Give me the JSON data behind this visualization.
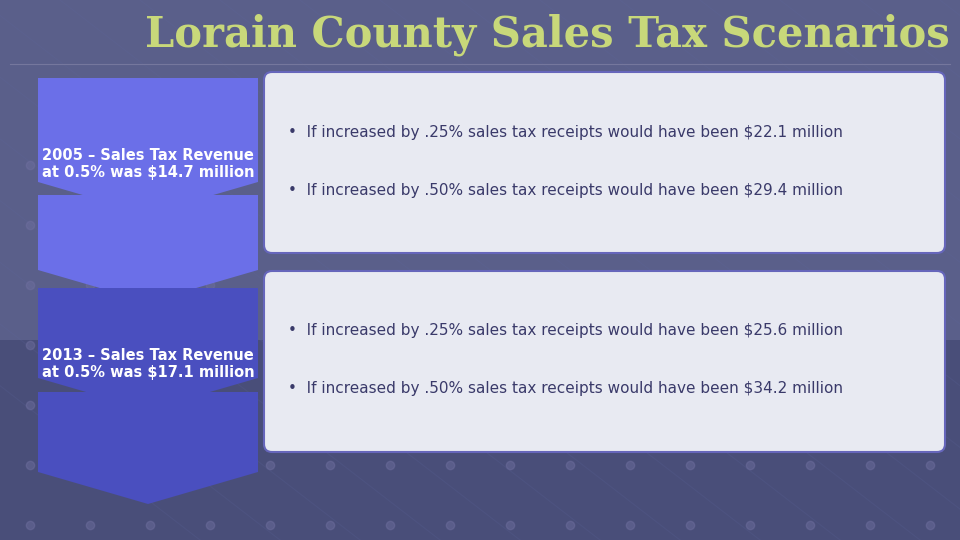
{
  "title": "Lorain County Sales Tax Scenarios",
  "title_color": "#c8d87a",
  "bg_top_color": "#5a5f8a",
  "bg_bottom_color": "#3a3f6a",
  "box1_label_line1": "2005 – Sales Tax Revenue",
  "box1_label_line2": "at 0.5% was $14.7 million",
  "box2_label_line1": "2013 – Sales Tax Revenue",
  "box2_label_line2": "at 0.5% was $17.1 million",
  "box1_bullet1": "•  If increased by .25% sales tax receipts would have been $22.1 million",
  "box1_bullet2": "•  If increased by .50% sales tax receipts would have been $29.4 million",
  "box2_bullet1": "•  If increased by .25% sales tax receipts would have been $25.6 million",
  "box2_bullet2": "•  If increased by .50% sales tax receipts would have been $34.2 million",
  "chevron_color_top": "#6b6fe8",
  "chevron_color_bottom": "#4a4fbf",
  "label_text_color": "#ffffff",
  "box_bg_color": "#e8eaf2",
  "box_border_color": "#6666bb",
  "bullet_text_color": "#3a3a6a",
  "separator_color": "#8888aa",
  "dot_color": "#7070a0",
  "line_color": "#6068a0"
}
